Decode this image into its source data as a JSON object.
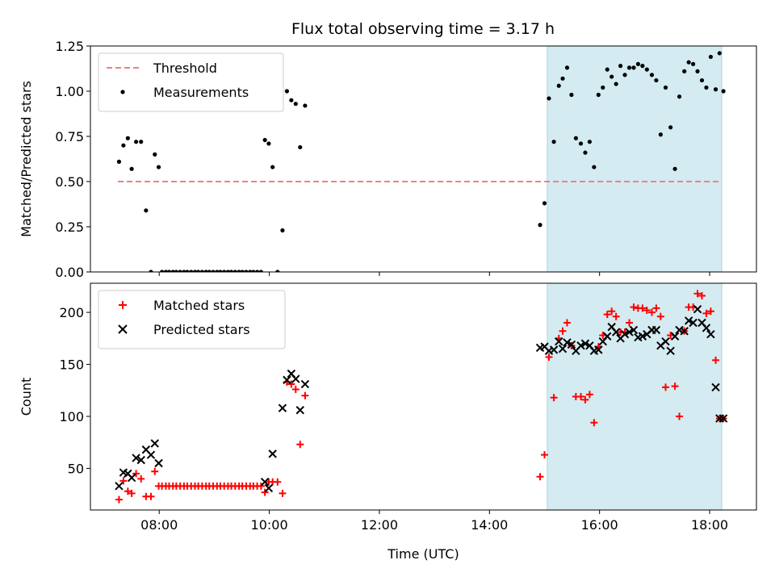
{
  "chart_data": [
    {
      "type": "scatter",
      "title": "Flux total observing time = 3.17 h",
      "ylabel": "Matched/Predicted stars",
      "xlabel": "",
      "x_unit": "hours UTC",
      "xlim": [
        6.75,
        18.85
      ],
      "ylim": [
        0,
        1.25
      ],
      "yticks": [
        0.0,
        0.25,
        0.5,
        0.75,
        1.0,
        1.25
      ],
      "ytick_labels": [
        "0.00",
        "0.25",
        "0.50",
        "0.75",
        "1.00",
        "1.25"
      ],
      "xticks": [
        8,
        10,
        12,
        14,
        16,
        18
      ],
      "show_xtick_labels": false,
      "grid": false,
      "legend": "top-left",
      "highlight_span": {
        "x0": 15.05,
        "x1": 18.22,
        "color": "#d4ebf1"
      },
      "threshold": {
        "name": "Threshold",
        "y": 0.5,
        "x0": 7.25,
        "x1": 18.22,
        "color": "#f08080"
      },
      "series": [
        {
          "name": "Measurements",
          "color": "#000000",
          "marker": "dot",
          "points": [
            [
              7.27,
              0.61
            ],
            [
              7.35,
              0.7
            ],
            [
              7.43,
              0.74
            ],
            [
              7.5,
              0.57
            ],
            [
              7.58,
              0.72
            ],
            [
              7.67,
              0.72
            ],
            [
              7.76,
              0.34
            ],
            [
              7.85,
              0.0
            ],
            [
              7.92,
              0.65
            ],
            [
              7.99,
              0.58
            ],
            [
              8.05,
              0.0
            ],
            [
              8.12,
              0.0
            ],
            [
              8.18,
              0.0
            ],
            [
              8.25,
              0.0
            ],
            [
              8.31,
              0.0
            ],
            [
              8.38,
              0.0
            ],
            [
              8.45,
              0.0
            ],
            [
              8.51,
              0.0
            ],
            [
              8.58,
              0.0
            ],
            [
              8.65,
              0.0
            ],
            [
              8.71,
              0.0
            ],
            [
              8.78,
              0.0
            ],
            [
              8.85,
              0.0
            ],
            [
              8.91,
              0.0
            ],
            [
              8.98,
              0.0
            ],
            [
              9.05,
              0.0
            ],
            [
              9.11,
              0.0
            ],
            [
              9.18,
              0.0
            ],
            [
              9.25,
              0.0
            ],
            [
              9.31,
              0.0
            ],
            [
              9.38,
              0.0
            ],
            [
              9.45,
              0.0
            ],
            [
              9.51,
              0.0
            ],
            [
              9.58,
              0.0
            ],
            [
              9.65,
              0.0
            ],
            [
              9.71,
              0.0
            ],
            [
              9.78,
              0.0
            ],
            [
              9.85,
              0.0
            ],
            [
              9.92,
              0.73
            ],
            [
              9.99,
              0.71
            ],
            [
              10.06,
              0.58
            ],
            [
              10.15,
              0.0
            ],
            [
              10.24,
              0.23
            ],
            [
              10.32,
              1.0
            ],
            [
              10.4,
              0.95
            ],
            [
              10.48,
              0.93
            ],
            [
              10.56,
              0.69
            ],
            [
              10.65,
              0.92
            ],
            [
              14.92,
              0.26
            ],
            [
              15.0,
              0.38
            ],
            [
              15.08,
              0.96
            ],
            [
              15.17,
              0.72
            ],
            [
              15.26,
              1.03
            ],
            [
              15.33,
              1.07
            ],
            [
              15.41,
              1.13
            ],
            [
              15.49,
              0.98
            ],
            [
              15.57,
              0.74
            ],
            [
              15.66,
              0.71
            ],
            [
              15.74,
              0.66
            ],
            [
              15.82,
              0.72
            ],
            [
              15.9,
              0.58
            ],
            [
              15.98,
              0.98
            ],
            [
              16.06,
              1.02
            ],
            [
              16.14,
              1.12
            ],
            [
              16.22,
              1.08
            ],
            [
              16.3,
              1.04
            ],
            [
              16.38,
              1.14
            ],
            [
              16.46,
              1.09
            ],
            [
              16.54,
              1.13
            ],
            [
              16.62,
              1.13
            ],
            [
              16.7,
              1.15
            ],
            [
              16.78,
              1.14
            ],
            [
              16.86,
              1.12
            ],
            [
              16.95,
              1.09
            ],
            [
              17.03,
              1.06
            ],
            [
              17.11,
              0.76
            ],
            [
              17.2,
              1.02
            ],
            [
              17.29,
              0.8
            ],
            [
              17.37,
              0.57
            ],
            [
              17.45,
              0.97
            ],
            [
              17.54,
              1.11
            ],
            [
              17.62,
              1.16
            ],
            [
              17.7,
              1.15
            ],
            [
              17.78,
              1.11
            ],
            [
              17.86,
              1.06
            ],
            [
              17.94,
              1.02
            ],
            [
              18.02,
              1.19
            ],
            [
              18.11,
              1.01
            ],
            [
              18.18,
              1.21
            ],
            [
              18.25,
              1.0
            ]
          ]
        }
      ]
    },
    {
      "type": "scatter",
      "title": "",
      "xlabel": "Time (UTC)",
      "ylabel": "Count",
      "x_unit": "hours UTC",
      "xlim": [
        6.75,
        18.85
      ],
      "ylim": [
        10,
        228
      ],
      "yticks": [
        50,
        100,
        150,
        200
      ],
      "ytick_labels": [
        "50",
        "100",
        "150",
        "200"
      ],
      "xticks": [
        8,
        10,
        12,
        14,
        16,
        18
      ],
      "xtick_labels": [
        "08:00",
        "10:00",
        "12:00",
        "14:00",
        "16:00",
        "18:00"
      ],
      "grid": false,
      "legend": "top-left",
      "highlight_span": {
        "x0": 15.05,
        "x1": 18.22,
        "color": "#d4ebf1"
      },
      "series": [
        {
          "name": "Matched stars",
          "color": "#ff0000",
          "marker": "plus",
          "points": [
            [
              7.27,
              20
            ],
            [
              7.35,
              38
            ],
            [
              7.43,
              28
            ],
            [
              7.5,
              26
            ],
            [
              7.58,
              45
            ],
            [
              7.67,
              40
            ],
            [
              7.76,
              23
            ],
            [
              7.85,
              23
            ],
            [
              7.92,
              47
            ],
            [
              7.99,
              33
            ],
            [
              8.05,
              33
            ],
            [
              8.12,
              33
            ],
            [
              8.18,
              33
            ],
            [
              8.25,
              33
            ],
            [
              8.31,
              33
            ],
            [
              8.38,
              33
            ],
            [
              8.45,
              33
            ],
            [
              8.51,
              33
            ],
            [
              8.58,
              33
            ],
            [
              8.65,
              33
            ],
            [
              8.71,
              33
            ],
            [
              8.78,
              33
            ],
            [
              8.85,
              33
            ],
            [
              8.91,
              33
            ],
            [
              8.98,
              33
            ],
            [
              9.05,
              33
            ],
            [
              9.11,
              33
            ],
            [
              9.18,
              33
            ],
            [
              9.25,
              33
            ],
            [
              9.31,
              33
            ],
            [
              9.38,
              33
            ],
            [
              9.45,
              33
            ],
            [
              9.51,
              33
            ],
            [
              9.58,
              33
            ],
            [
              9.65,
              33
            ],
            [
              9.71,
              33
            ],
            [
              9.78,
              33
            ],
            [
              9.85,
              33
            ],
            [
              9.92,
              27
            ],
            [
              9.99,
              37
            ],
            [
              10.06,
              37
            ],
            [
              10.15,
              37
            ],
            [
              10.24,
              26
            ],
            [
              10.32,
              133
            ],
            [
              10.4,
              131
            ],
            [
              10.48,
              126
            ],
            [
              10.56,
              73
            ],
            [
              10.65,
              120
            ],
            [
              14.92,
              42
            ],
            [
              15.0,
              63
            ],
            [
              15.08,
              157
            ],
            [
              15.17,
              118
            ],
            [
              15.26,
              175
            ],
            [
              15.33,
              182
            ],
            [
              15.41,
              190
            ],
            [
              15.49,
              168
            ],
            [
              15.57,
              119
            ],
            [
              15.66,
              119
            ],
            [
              15.74,
              116
            ],
            [
              15.82,
              121
            ],
            [
              15.9,
              94
            ],
            [
              15.98,
              167
            ],
            [
              16.06,
              178
            ],
            [
              16.14,
              198
            ],
            [
              16.22,
              201
            ],
            [
              16.3,
              196
            ],
            [
              16.38,
              181
            ],
            [
              16.46,
              181
            ],
            [
              16.54,
              190
            ],
            [
              16.62,
              205
            ],
            [
              16.7,
              204
            ],
            [
              16.78,
              204
            ],
            [
              16.86,
              202
            ],
            [
              16.95,
              200
            ],
            [
              17.03,
              204
            ],
            [
              17.11,
              196
            ],
            [
              17.2,
              128
            ],
            [
              17.29,
              178
            ],
            [
              17.37,
              129
            ],
            [
              17.45,
              100
            ],
            [
              17.54,
              182
            ],
            [
              17.62,
              205
            ],
            [
              17.7,
              205
            ],
            [
              17.78,
              218
            ],
            [
              17.86,
              216
            ],
            [
              17.94,
              199
            ],
            [
              18.02,
              201
            ],
            [
              18.11,
              154
            ],
            [
              18.18,
              98
            ],
            [
              18.25,
              98
            ]
          ]
        },
        {
          "name": "Predicted stars",
          "color": "#000000",
          "marker": "x",
          "points": [
            [
              7.27,
              33
            ],
            [
              7.35,
              46
            ],
            [
              7.43,
              45
            ],
            [
              7.5,
              41
            ],
            [
              7.58,
              60
            ],
            [
              7.67,
              58
            ],
            [
              7.76,
              68
            ],
            [
              7.85,
              63
            ],
            [
              7.92,
              74
            ],
            [
              7.99,
              55
            ],
            [
              9.92,
              37
            ],
            [
              9.99,
              31
            ],
            [
              10.06,
              64
            ],
            [
              10.24,
              108
            ],
            [
              10.32,
              135
            ],
            [
              10.4,
              141
            ],
            [
              10.48,
              136
            ],
            [
              10.56,
              106
            ],
            [
              10.65,
              131
            ],
            [
              14.92,
              166
            ],
            [
              15.0,
              167
            ],
            [
              15.08,
              163
            ],
            [
              15.17,
              164
            ],
            [
              15.26,
              172
            ],
            [
              15.33,
              165
            ],
            [
              15.41,
              171
            ],
            [
              15.49,
              169
            ],
            [
              15.57,
              163
            ],
            [
              15.66,
              168
            ],
            [
              15.74,
              170
            ],
            [
              15.82,
              168
            ],
            [
              15.9,
              163
            ],
            [
              15.98,
              164
            ],
            [
              16.06,
              172
            ],
            [
              16.14,
              177
            ],
            [
              16.22,
              186
            ],
            [
              16.3,
              181
            ],
            [
              16.38,
              175
            ],
            [
              16.46,
              179
            ],
            [
              16.54,
              181
            ],
            [
              16.62,
              183
            ],
            [
              16.7,
              176
            ],
            [
              16.78,
              177
            ],
            [
              16.86,
              179
            ],
            [
              16.95,
              183
            ],
            [
              17.03,
              183
            ],
            [
              17.11,
              168
            ],
            [
              17.2,
              172
            ],
            [
              17.29,
              163
            ],
            [
              17.37,
              177
            ],
            [
              17.45,
              183
            ],
            [
              17.54,
              182
            ],
            [
              17.62,
              192
            ],
            [
              17.7,
              190
            ],
            [
              17.78,
              203
            ],
            [
              17.86,
              190
            ],
            [
              17.94,
              185
            ],
            [
              18.02,
              179
            ],
            [
              18.11,
              128
            ],
            [
              18.18,
              98
            ],
            [
              18.25,
              98
            ]
          ]
        }
      ]
    }
  ]
}
